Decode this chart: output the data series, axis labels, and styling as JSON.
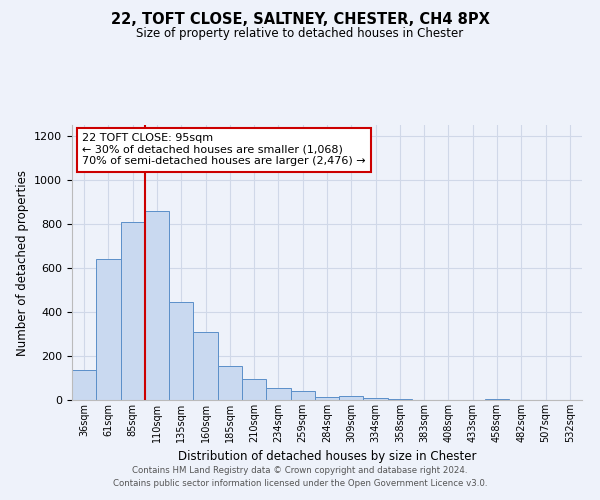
{
  "title": "22, TOFT CLOSE, SALTNEY, CHESTER, CH4 8PX",
  "subtitle": "Size of property relative to detached houses in Chester",
  "xlabel": "Distribution of detached houses by size in Chester",
  "ylabel": "Number of detached properties",
  "bar_labels": [
    "36sqm",
    "61sqm",
    "85sqm",
    "110sqm",
    "135sqm",
    "160sqm",
    "185sqm",
    "210sqm",
    "234sqm",
    "259sqm",
    "284sqm",
    "309sqm",
    "334sqm",
    "358sqm",
    "383sqm",
    "408sqm",
    "433sqm",
    "458sqm",
    "482sqm",
    "507sqm",
    "532sqm"
  ],
  "bar_values": [
    135,
    640,
    810,
    860,
    445,
    310,
    155,
    95,
    55,
    40,
    15,
    20,
    10,
    5,
    0,
    0,
    0,
    5,
    0,
    0,
    0
  ],
  "bar_color": "#c9d9f0",
  "bar_edgecolor": "#5b8fc9",
  "ylim": [
    0,
    1250
  ],
  "yticks": [
    0,
    200,
    400,
    600,
    800,
    1000,
    1200
  ],
  "annotation_title": "22 TOFT CLOSE: 95sqm",
  "annotation_line1": "← 30% of detached houses are smaller (1,068)",
  "annotation_line2": "70% of semi-detached houses are larger (2,476) →",
  "annotation_box_color": "#ffffff",
  "annotation_box_edgecolor": "#cc0000",
  "red_line_color": "#cc0000",
  "footer_line1": "Contains HM Land Registry data © Crown copyright and database right 2024.",
  "footer_line2": "Contains public sector information licensed under the Open Government Licence v3.0.",
  "grid_color": "#d0d8e8",
  "background_color": "#eef2fa"
}
